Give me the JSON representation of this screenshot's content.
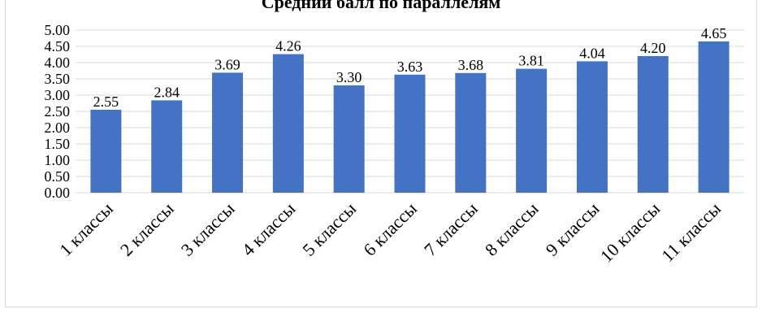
{
  "chart_data": {
    "type": "bar",
    "title": "Средний балл по параллелям",
    "categories": [
      "1 классы",
      "2 классы",
      "3 классы",
      "4 классы",
      "5 классы",
      "6 классы",
      "7 классы",
      "8 классы",
      "9 классы",
      "10 классы",
      "11 классы"
    ],
    "values": [
      2.55,
      2.84,
      3.69,
      4.26,
      3.3,
      3.63,
      3.68,
      3.81,
      4.04,
      4.2,
      4.65
    ],
    "data_labels": [
      "2.55",
      "2.84",
      "3.69",
      "4.26",
      "3.30",
      "3.63",
      "3.68",
      "3.81",
      "4.04",
      "4.20",
      "4.65"
    ],
    "y_ticks": [
      "0.00",
      "0.50",
      "1.00",
      "1.50",
      "2.00",
      "2.50",
      "3.00",
      "3.50",
      "4.00",
      "4.50",
      "5.00"
    ],
    "ylim": [
      0,
      5
    ],
    "xlabel": "",
    "ylabel": "",
    "grid": true,
    "legend": "none",
    "bar_color": "#4472c4",
    "grid_color": "#d9d9d9"
  }
}
